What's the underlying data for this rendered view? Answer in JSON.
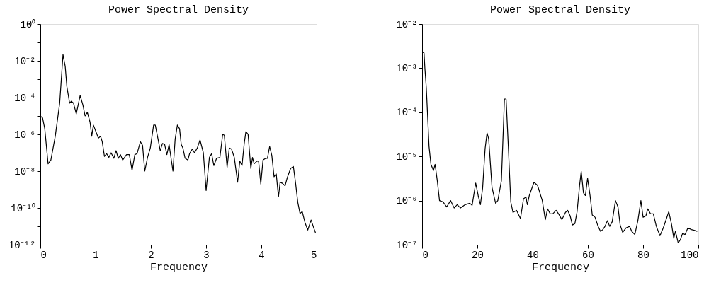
{
  "chart_data": [
    {
      "type": "line",
      "title": "Power Spectral Density",
      "xlabel": "Frequency",
      "log": "y",
      "grid": false,
      "marker": "none",
      "line_style": "solid",
      "xlim": [
        0,
        5
      ],
      "xticks": [
        0,
        1,
        2,
        3,
        4,
        5
      ],
      "ylim": [
        1e-12,
        1
      ],
      "yticks": [
        {
          "value": 1,
          "label": "10⁰"
        },
        {
          "value": 0.1,
          "label": null
        },
        {
          "value": 0.01,
          "label": "10⁻²"
        },
        {
          "value": 0.001,
          "label": null
        },
        {
          "value": 0.0001,
          "label": "10⁻⁴"
        },
        {
          "value": 1e-05,
          "label": null
        },
        {
          "value": 1e-06,
          "label": "10⁻⁶"
        },
        {
          "value": 1e-07,
          "label": null
        },
        {
          "value": 1e-08,
          "label": "10⁻⁸"
        },
        {
          "value": 1e-09,
          "label": null
        },
        {
          "value": 1e-10,
          "label": "10⁻¹⁰"
        },
        {
          "value": 1e-11,
          "label": null
        },
        {
          "value": 1e-12,
          "label": "10⁻¹²"
        }
      ],
      "series": [
        {
          "color": "#000000",
          "x": [
            0.01,
            0.04,
            0.08,
            0.14,
            0.19,
            0.27,
            0.35,
            0.41,
            0.45,
            0.48,
            0.53,
            0.56,
            0.6,
            0.65,
            0.72,
            0.77,
            0.81,
            0.85,
            0.9,
            0.93,
            0.96,
            1.01,
            1.05,
            1.09,
            1.12,
            1.16,
            1.2,
            1.24,
            1.28,
            1.33,
            1.37,
            1.41,
            1.45,
            1.49,
            1.56,
            1.61,
            1.66,
            1.71,
            1.75,
            1.81,
            1.85,
            1.89,
            1.94,
            1.99,
            2.05,
            2.08,
            2.13,
            2.17,
            2.21,
            2.25,
            2.29,
            2.33,
            2.4,
            2.44,
            2.48,
            2.52,
            2.55,
            2.58,
            2.62,
            2.67,
            2.7,
            2.75,
            2.79,
            2.84,
            2.89,
            2.95,
            3.0,
            3.06,
            3.1,
            3.14,
            3.19,
            3.25,
            3.3,
            3.33,
            3.38,
            3.42,
            3.46,
            3.51,
            3.57,
            3.61,
            3.65,
            3.69,
            3.72,
            3.76,
            3.81,
            3.84,
            3.87,
            3.92,
            3.95,
            3.99,
            4.03,
            4.08,
            4.11,
            4.15,
            4.19,
            4.23,
            4.27,
            4.31,
            4.34,
            4.38,
            4.43,
            4.47,
            4.53,
            4.58,
            4.62,
            4.66,
            4.7,
            4.74,
            4.79,
            4.84,
            4.9,
            4.95,
            4.98
          ],
          "values": [
            9.3e-06,
            7.9e-06,
            2e-06,
            2.5e-08,
            4e-08,
            7.9e-07,
            5e-05,
            0.022,
            0.005,
            0.0004,
            5e-05,
            6.3e-05,
            5e-05,
            1.3e-05,
            0.00013,
            4e-05,
            1e-05,
            1.6e-05,
            4.5e-06,
            7.9e-07,
            3.2e-06,
            1.3e-06,
            6.3e-07,
            7.9e-07,
            4e-07,
            6.3e-08,
            8.9e-08,
            5.6e-08,
            1e-07,
            5e-08,
            1.3e-07,
            5e-08,
            7.9e-08,
            4e-08,
            7.9e-08,
            7.9e-08,
            1.1e-08,
            7.9e-08,
            8.9e-08,
            4e-07,
            2.5e-07,
            1e-08,
            5.6e-08,
            1.8e-07,
            3.2e-06,
            3.2e-06,
            5.6e-07,
            1.3e-07,
            3.2e-07,
            2.8e-07,
            7.9e-08,
            2.8e-07,
            1e-08,
            5.6e-07,
            3.2e-06,
            2e-06,
            2.8e-07,
            1.8e-07,
            5e-08,
            4e-08,
            8.9e-08,
            1.6e-07,
            1e-07,
            1.8e-07,
            5e-07,
            1e-07,
            8.9e-10,
            5.6e-08,
            8.9e-08,
            2e-08,
            5e-08,
            5.6e-08,
            1e-06,
            8.9e-07,
            1.6e-08,
            1.8e-07,
            1.6e-07,
            5.6e-08,
            2.5e-09,
            3.5e-08,
            2e-08,
            3.2e-07,
            1.4e-06,
            1e-06,
            1.4e-08,
            5.6e-08,
            2.5e-08,
            3.5e-08,
            3.5e-08,
            2e-09,
            4e-08,
            5e-08,
            5e-08,
            2.2e-07,
            7.1e-08,
            5e-09,
            7.1e-09,
            4e-10,
            2.5e-09,
            2.2e-09,
            1.6e-09,
            4.5e-09,
            1.4e-08,
            1.8e-08,
            2.2e-09,
            2e-10,
            5e-11,
            6.3e-11,
            1.6e-11,
            6.3e-12,
            2.2e-11,
            7.9e-12,
            4.5e-12
          ]
        }
      ]
    },
    {
      "type": "line",
      "title": "Power Spectral Density",
      "xlabel": "Frequency",
      "log": "y",
      "grid": false,
      "marker": "none",
      "line_style": "solid",
      "xlim": [
        0,
        100
      ],
      "xticks": [
        0,
        20,
        40,
        60,
        80,
        100
      ],
      "ylim": [
        1e-07,
        0.01
      ],
      "yticks": [
        {
          "value": 0.01,
          "label": "10⁻²"
        },
        {
          "value": 0.001,
          "label": "10⁻³"
        },
        {
          "value": 0.0001,
          "label": "10⁻⁴"
        },
        {
          "value": 1e-05,
          "label": "10⁻⁵"
        },
        {
          "value": 1e-06,
          "label": "10⁻⁶"
        },
        {
          "value": 1e-07,
          "label": "10⁻⁷"
        }
      ],
      "series": [
        {
          "color": "#000000",
          "x": [
            0.2,
            0.7,
            1.0,
            1.5,
            2.1,
            2.5,
            3.2,
            4.1,
            4.7,
            5.5,
            6.3,
            7.6,
            8.9,
            10.3,
            11.6,
            12.7,
            13.9,
            15.6,
            17.3,
            18.1,
            19.4,
            20.3,
            21.1,
            21.9,
            22.8,
            23.5,
            24.1,
            25.3,
            26.6,
            27.4,
            28.7,
            29.8,
            30.4,
            31.2,
            32.1,
            32.9,
            34.2,
            35.6,
            36.7,
            37.6,
            38.1,
            38.8,
            40.5,
            41.8,
            43.5,
            44.6,
            45.4,
            46.4,
            47.3,
            48.5,
            49.4,
            50.6,
            51.9,
            52.7,
            53.6,
            54.4,
            55.3,
            56.1,
            57.0,
            57.6,
            58.4,
            59.1,
            59.9,
            60.8,
            61.6,
            62.6,
            63.7,
            64.6,
            65.4,
            66.2,
            67.1,
            67.9,
            68.8,
            70.0,
            70.9,
            71.7,
            72.6,
            73.8,
            75.1,
            75.9,
            77.0,
            78.1,
            79.2,
            80.0,
            81.0,
            81.7,
            82.7,
            83.7,
            84.8,
            86.1,
            87.3,
            88.2,
            89.3,
            90.3,
            91.1,
            91.7,
            92.7,
            93.5,
            94.3,
            95.2,
            96.2,
            97.5,
            98.7,
            99.6
          ],
          "values": [
            0.0023,
            0.0022,
            0.001,
            0.00037,
            5.9e-05,
            1.7e-05,
            6.6e-06,
            4.8e-06,
            6.6e-06,
            2.8e-06,
            1e-06,
            9.3e-07,
            7.2e-07,
            1e-06,
            6.8e-07,
            8.1e-07,
            6.8e-07,
            8.1e-07,
            8.7e-07,
            7.8e-07,
            2.5e-06,
            1.3e-06,
            8.1e-07,
            1.9e-06,
            1.5e-05,
            3.4e-05,
            2.5e-05,
            2e-06,
            8.7e-07,
            1e-06,
            2.8e-06,
            0.0002,
            0.0002,
            1.7e-05,
            9.3e-07,
            5.4e-07,
            6e-07,
            3.9e-07,
            1.1e-06,
            1.2e-06,
            8.1e-07,
            1.3e-06,
            2.6e-06,
            2.2e-06,
            1e-06,
            3.7e-07,
            6.5e-07,
            5e-07,
            5e-07,
            6e-07,
            5e-07,
            3.7e-07,
            5.4e-07,
            6e-07,
            4.5e-07,
            2.8e-07,
            3e-07,
            5.6e-07,
            2.2e-06,
            4.6e-06,
            1.5e-06,
            1.3e-06,
            3.2e-06,
            1.3e-06,
            4.7e-07,
            4.2e-07,
            2.6e-07,
            2e-07,
            2.2e-07,
            2.6e-07,
            3.5e-07,
            2.6e-07,
            3.3e-07,
            1e-06,
            7.2e-07,
            2.8e-07,
            1.9e-07,
            2.4e-07,
            2.6e-07,
            2e-07,
            1.7e-07,
            3.5e-07,
            1e-06,
            4.2e-07,
            4.5e-07,
            6.5e-07,
            5e-07,
            5e-07,
            2.6e-07,
            1.6e-07,
            2.4e-07,
            3.5e-07,
            5.6e-07,
            2.9e-07,
            1.4e-07,
            2e-07,
            1.1e-07,
            1.3e-07,
            1.8e-07,
            1.7e-07,
            2.4e-07,
            2.2e-07,
            2.1e-07,
            2e-07
          ]
        }
      ]
    }
  ]
}
